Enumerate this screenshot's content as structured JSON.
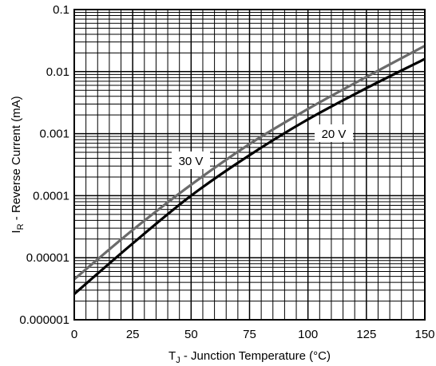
{
  "chart_data": {
    "type": "line",
    "title": "",
    "xlabel": {
      "main": "T",
      "sub": "J",
      "rest": " - Junction Temperature (°C)"
    },
    "ylabel": {
      "main": "I",
      "sub": "R",
      "rest": " - Reverse Current (mA)"
    },
    "x_scale": "linear",
    "y_scale": "log",
    "xlim": [
      0,
      150
    ],
    "ylim": [
      1e-06,
      0.1
    ],
    "x_ticks": [
      0,
      25,
      50,
      75,
      100,
      125,
      150
    ],
    "x_tick_labels": [
      "0",
      "25",
      "50",
      "75",
      "100",
      "125",
      "150"
    ],
    "y_ticks": [
      1e-06,
      1e-05,
      0.0001,
      0.001,
      0.01,
      0.1
    ],
    "y_tick_labels": [
      "0.000001",
      "0.00001",
      "0.0001",
      "0.001",
      "0.01",
      "0.1"
    ],
    "grid": true,
    "legend": "none",
    "series": [
      {
        "name": "30 V",
        "color": "#6b6b6b",
        "x": [
          0,
          25,
          50,
          75,
          100,
          125,
          150
        ],
        "y": [
          4.5e-06,
          2.8e-05,
          0.00015,
          0.00068,
          0.0025,
          0.0082,
          0.026
        ]
      },
      {
        "name": "20 V",
        "color": "#000000",
        "x": [
          0,
          25,
          50,
          75,
          100,
          125,
          150
        ],
        "y": [
          2.6e-06,
          1.7e-05,
          0.0001,
          0.00045,
          0.0017,
          0.0054,
          0.016
        ]
      }
    ]
  }
}
